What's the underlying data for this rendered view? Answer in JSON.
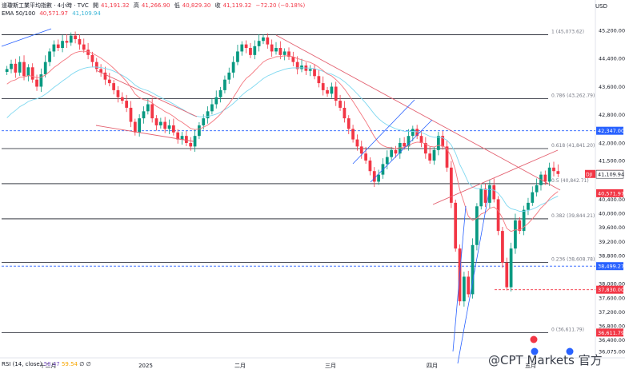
{
  "header": {
    "symbol": "道瓊斯工業平均指數 · 4小時 · TVC",
    "open_label": "開",
    "open": "41,191.32",
    "high_label": "高",
    "high": "41,266.90",
    "low_label": "低",
    "low": "40,829.30",
    "close_label": "收",
    "close": "41,119.32",
    "change": "−72.20 (−0.18%)",
    "ema_label": "EMA 50/100",
    "ema50": "40,571.97",
    "ema100": "41,109.94"
  },
  "currency": "USD",
  "rsi": {
    "label": "RSI (14, close)",
    "v1": "58.47",
    "v2": "59.54",
    "v3": "∅",
    "v4": "∅"
  },
  "watermark": "@CPT Markets 官方",
  "colors": {
    "up": "#089981",
    "down": "#f23645",
    "ema50": "#f4777f",
    "ema100": "#7fd8f0",
    "trend": "#e36170",
    "channel": "#2962ff",
    "fib": "#131722"
  },
  "chart_data": {
    "type": "candlestick",
    "price_axis": {
      "min": 36075,
      "max": 45200,
      "ticks": [
        45200,
        44400,
        43600,
        42800,
        42000,
        41500,
        40400,
        40000,
        39600,
        39200,
        38800,
        38000,
        37600,
        37200,
        36800,
        36400,
        36075
      ]
    },
    "price_tick_labels": [
      "45,200.00",
      "44,400.00",
      "43,600.00",
      "42,800.00",
      "42,000.00",
      "41,500.00",
      "40,400.00",
      "40,000.00",
      "39,600.00",
      "39,200.00",
      "38,800.00",
      "38,000.00",
      "37,600.00",
      "37,200.00",
      "36,800.00",
      "36,400.00",
      "36,075.00"
    ],
    "time_labels": [
      "十二月",
      "2025",
      "二月",
      "三月",
      "四月",
      "五月"
    ],
    "fib_levels": [
      {
        "label": "1 (45,073.62)",
        "price": 45073.62
      },
      {
        "label": "0.786 (43,262.79)",
        "price": 43262.79
      },
      {
        "label": "0.618 (41,841.20)",
        "price": 41841.2
      },
      {
        "label": "0.5 (40,842.71)",
        "price": 40842.71
      },
      {
        "label": "0.382 (39,844.21)",
        "price": 39844.21
      },
      {
        "label": "0.236 (38,608.78)",
        "price": 38608.78
      },
      {
        "label": "0 (36,611.79)",
        "price": 36611.79
      }
    ],
    "price_tags": [
      {
        "label": "42,347.00",
        "price": 42347,
        "color": "#2962ff"
      },
      {
        "label": "41,119.32",
        "price": 41119.32,
        "color": "#f23645",
        "prefix": "DJI"
      },
      {
        "label": "41,109.94",
        "price": 41109.94,
        "color": "#ffffff"
      },
      {
        "label": "40,571.97",
        "price": 40571.97,
        "color": "#f23645"
      },
      {
        "label": "38,499.27",
        "price": 38499.27,
        "color": "#2962ff"
      },
      {
        "label": "37,830.00",
        "price": 37830,
        "color": "#f23645"
      },
      {
        "label": "36,611.79",
        "price": 36611.79,
        "color": "#f23645"
      }
    ],
    "dashed_levels": [
      {
        "price": 42347,
        "color": "#2962ff"
      },
      {
        "price": 38499.27,
        "color": "#2962ff"
      },
      {
        "price": 37830,
        "color": "#f23645"
      }
    ],
    "closes": [
      44100,
      44250,
      44000,
      44300,
      43900,
      44150,
      43800,
      43600,
      43950,
      44300,
      44600,
      44800,
      44700,
      44900,
      44850,
      45050,
      44950,
      44800,
      44650,
      44500,
      44300,
      44100,
      44000,
      43800,
      43700,
      43500,
      43300,
      43200,
      43000,
      42600,
      42300,
      42700,
      42900,
      43100,
      42700,
      42500,
      42600,
      42400,
      42500,
      42300,
      42100,
      42200,
      42000,
      41900,
      42200,
      42500,
      42700,
      42900,
      43100,
      43300,
      43500,
      43800,
      44000,
      44300,
      44600,
      44800,
      44700,
      44500,
      44750,
      44900,
      45000,
      44800,
      44600,
      44700,
      44500,
      44600,
      44450,
      44300,
      44100,
      44200,
      44050,
      44100,
      43900,
      43700,
      43500,
      43400,
      43600,
      43200,
      43000,
      42700,
      42400,
      42100,
      41900,
      41700,
      41500,
      41200,
      40900,
      41100,
      41400,
      41600,
      41800,
      41700,
      42000,
      41900,
      42200,
      42400,
      42200,
      42000,
      41700,
      41500,
      41800,
      42200,
      41900,
      41300,
      40300,
      39000,
      37500,
      38200,
      37700,
      39100,
      40200,
      40700,
      40300,
      40800,
      40400,
      39500,
      38600,
      37900,
      39000,
      39800,
      39500,
      40100,
      40300,
      40600,
      40800,
      41100,
      40900,
      41300,
      41200,
      41119
    ]
  }
}
